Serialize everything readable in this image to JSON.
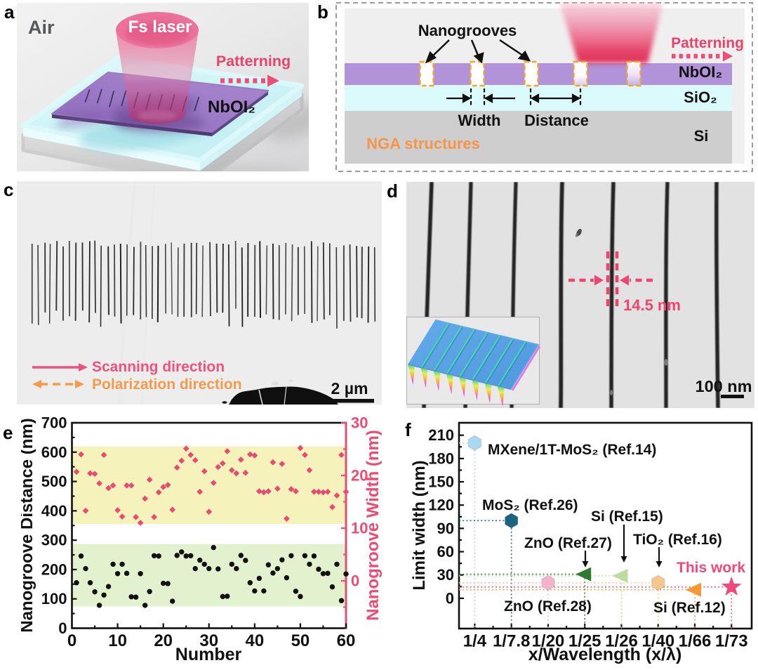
{
  "panels": {
    "a": "a",
    "b": "b",
    "c": "c",
    "d": "d",
    "e": "e",
    "f": "f"
  },
  "colors": {
    "accent_pink": "#ED4C72",
    "accent_orange": "#F59A4B",
    "nboi2_purple": "#B293D9",
    "sio2_cyan": "#DBFAFC",
    "si_gray": "#CECECE",
    "groove_outline_orange": "#F5A623",
    "band_yellow": "#F6F2BC",
    "band_green": "#E3F2CE"
  },
  "panel_a": {
    "air": "Air",
    "laser": "Fs laser",
    "patterning": "Patterning",
    "material": "NbOI₂"
  },
  "panel_b": {
    "nanogrooves": "Nanogrooves",
    "patterning": "Patterning",
    "width": "Width",
    "distance": "Distance",
    "nga": "NGA structures",
    "layer1": "NbOI₂",
    "layer2": "SiO₂",
    "layer3": "Si"
  },
  "panel_c": {
    "scanning": "Scanning direction",
    "polarization": "Polarization direction",
    "scalebar": "2 µm"
  },
  "panel_d": {
    "measurement": "14.5 nm",
    "scalebar": "100 nm"
  },
  "chart_data": [
    {
      "type": "scatter",
      "title": "",
      "xlabel": "Number",
      "ylabel_left": "Nanogroove Distance (nm)",
      "ylabel_right": "Nanogroove Width (nm)",
      "xlim": [
        0,
        60
      ],
      "ylim_left": [
        0,
        700
      ],
      "ylim_right": [
        -9,
        30
      ],
      "x_ticks": [
        0,
        10,
        20,
        30,
        40,
        50,
        60
      ],
      "x_minor_step": 5,
      "y_ticks_left": [
        0,
        100,
        200,
        300,
        400,
        500,
        600,
        700
      ],
      "y_ticks_right": [
        0,
        10,
        20,
        30
      ],
      "grid": false,
      "bands": [
        {
          "axis": "left",
          "from": 355,
          "to": 620,
          "color": "#F6F2BC"
        },
        {
          "axis": "left",
          "from": 74,
          "to": 287,
          "color": "#E3F2CE"
        }
      ],
      "series": [
        {
          "name": "Nanogroove Distance",
          "axis": "left",
          "marker": "circle",
          "color": "#111111",
          "x": [
            1,
            2,
            3,
            4,
            5,
            6,
            7,
            8,
            9,
            10,
            11,
            12,
            13,
            14,
            15,
            16,
            17,
            18,
            19,
            20,
            21,
            22,
            23,
            24,
            25,
            26,
            27,
            28,
            29,
            30,
            31,
            32,
            33,
            34,
            35,
            36,
            37,
            38,
            39,
            40,
            41,
            42,
            43,
            44,
            45,
            46,
            47,
            48,
            49,
            50,
            51,
            52,
            53,
            54,
            55,
            56,
            57,
            58,
            59,
            60
          ],
          "y": [
            155,
            246,
            203,
            155,
            124,
            78,
            113,
            142,
            218,
            186,
            218,
            187,
            107,
            106,
            186,
            78,
            125,
            247,
            246,
            153,
            152,
            92,
            248,
            260,
            246,
            247,
            203,
            232,
            218,
            203,
            275,
            202,
            108,
            109,
            218,
            203,
            248,
            231,
            155,
            127,
            170,
            127,
            216,
            188,
            203,
            233,
            172,
            247,
            126,
            108,
            247,
            218,
            246,
            201,
            186,
            187,
            141,
            218,
            94,
            185
          ]
        },
        {
          "name": "Nanogroove Width",
          "axis": "right",
          "marker": "diamond",
          "color": "#E84A72",
          "x": [
            1,
            2,
            3,
            4,
            5,
            6,
            7,
            8,
            9,
            10,
            11,
            12,
            13,
            14,
            15,
            16,
            17,
            18,
            19,
            20,
            21,
            22,
            23,
            24,
            25,
            26,
            27,
            28,
            29,
            30,
            31,
            32,
            33,
            34,
            35,
            36,
            37,
            38,
            39,
            40,
            41,
            42,
            43,
            44,
            45,
            46,
            47,
            48,
            49,
            50,
            51,
            52,
            53,
            54,
            55,
            56,
            57,
            58,
            59,
            60
          ],
          "y": [
            20.7,
            24.0,
            13.3,
            20.4,
            20.3,
            18.5,
            23.9,
            17.6,
            18.1,
            13.4,
            12.2,
            18.1,
            18.1,
            12.1,
            11.0,
            15.6,
            19.2,
            12.1,
            16.8,
            17.8,
            18.2,
            13.5,
            21.5,
            22.8,
            25.1,
            23.9,
            22.9,
            16.9,
            20.8,
            13.1,
            18.6,
            21.6,
            22.3,
            24.6,
            21.0,
            20.4,
            23.0,
            20.5,
            24.0,
            23.8,
            17.0,
            16.8,
            17.0,
            22.5,
            17.5,
            22.2,
            11.8,
            17.4,
            17.0,
            25.2,
            23.9,
            21.0,
            16.9,
            16.9,
            16.8,
            16.9,
            14.0,
            16.2,
            23.9,
            16.9
          ]
        }
      ]
    },
    {
      "type": "scatter",
      "title": "",
      "xlabel": "x/Wavelength (x/λ)",
      "ylabel": "Limit width (nm)",
      "categories": [
        "1/4",
        "1/7.8",
        "1/20",
        "1/25",
        "1/26",
        "1/40",
        "1/66",
        "1/73"
      ],
      "y_ticks": [
        0,
        30,
        60,
        90,
        120,
        150,
        180,
        210
      ],
      "y_minor_step": 15,
      "ylim": [
        -39,
        226
      ],
      "grid": false,
      "points": [
        {
          "label": "MXene/1T-MoS₂  (Ref.14)",
          "category": "1/4",
          "value": 200,
          "marker": "hexagon",
          "color": "#A9D8F2"
        },
        {
          "label": "MoS₂ (Ref.26)",
          "category": "1/7.8",
          "value": 100,
          "marker": "hexagon",
          "color": "#1B6480"
        },
        {
          "label": "ZnO (Ref.28)",
          "category": "1/20",
          "value": 20,
          "marker": "hexagon",
          "color": "#F4B3CD"
        },
        {
          "label": "ZnO (Ref.27)",
          "category": "1/25",
          "value": 31,
          "marker": "triangle-left",
          "color": "#2E7A2E"
        },
        {
          "label": "Si (Ref.15)",
          "category": "1/26",
          "value": 29,
          "marker": "triangle-left",
          "color": "#BCDB9E"
        },
        {
          "label": "TiO₂ (Ref.16)",
          "category": "1/40",
          "value": 20,
          "marker": "hexagon",
          "color": "#F5C78F"
        },
        {
          "label": "Si (Ref.12)",
          "category": "1/66",
          "value": 11,
          "marker": "triangle-left",
          "color": "#F79833"
        },
        {
          "label": "This work",
          "category": "1/73",
          "value": 14.5,
          "marker": "star",
          "color": "#F2487B"
        }
      ]
    }
  ]
}
